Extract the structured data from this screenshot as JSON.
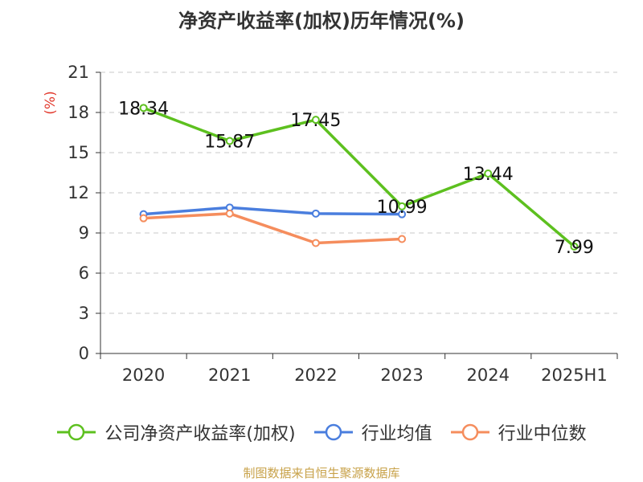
{
  "chart_data": {
    "type": "line",
    "title": "净资产收益率(加权)历年情况(%)",
    "ylabel": "(%)",
    "categories": [
      "2020",
      "2021",
      "2022",
      "2023",
      "2024",
      "2025H1"
    ],
    "yticks": [
      "0",
      "3",
      "6",
      "9",
      "12",
      "15",
      "18",
      "21"
    ],
    "ylim": [
      0,
      21
    ],
    "grid": true,
    "legend_position": "bottom",
    "series": [
      {
        "name": "公司净资产收益率(加权)",
        "color": "#5dc01f",
        "values": [
          18.34,
          15.87,
          17.45,
          10.99,
          13.44,
          7.99
        ],
        "labels": [
          "18.34",
          "15.87",
          "17.45",
          "10.99",
          "13.44",
          "7.99"
        ]
      },
      {
        "name": "行业均值",
        "color": "#4a7ede",
        "values": [
          10.4,
          10.9,
          10.45,
          10.4,
          null,
          null
        ]
      },
      {
        "name": "行业中位数",
        "color": "#f58d5d",
        "values": [
          10.1,
          10.45,
          8.25,
          8.55,
          null,
          null
        ]
      }
    ]
  },
  "source": "制图数据来自恒生聚源数据库"
}
